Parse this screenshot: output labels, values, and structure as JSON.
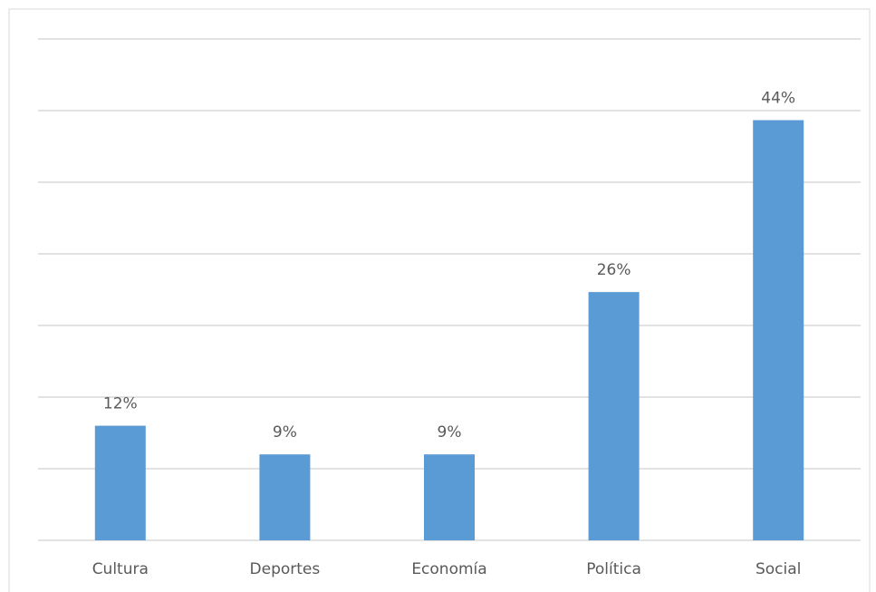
{
  "chart_data": {
    "type": "bar",
    "categories": [
      "Cultura",
      "Deportes",
      "Economía",
      "Política",
      "Social"
    ],
    "values": [
      12,
      9,
      9,
      26,
      44
    ],
    "value_labels": [
      "12%",
      "9%",
      "9%",
      "26%",
      "44%"
    ],
    "color": "#5b9bd5",
    "ylim": [
      0,
      52.5
    ],
    "yticks": [
      0,
      7.5,
      15,
      22.5,
      30,
      37.5,
      45,
      52.5
    ],
    "grid": true
  }
}
